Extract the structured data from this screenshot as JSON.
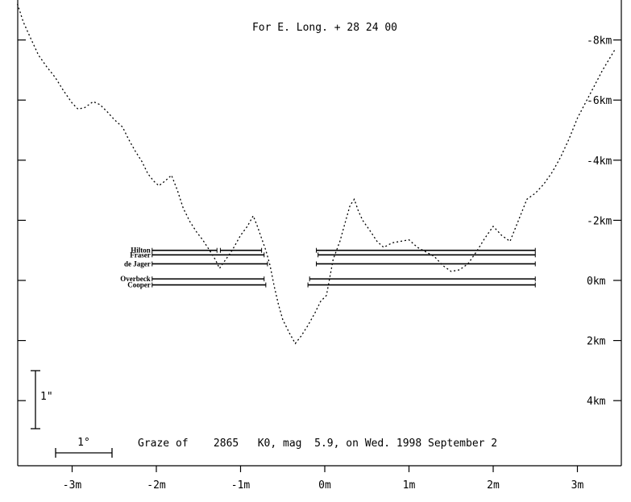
{
  "chart_data": {
    "type": "line",
    "title": "For E. Long. + 28 24 00",
    "caption": "Graze of    2865   K0, mag  5.9, on Wed. 1998 September 2",
    "xlabel": "",
    "ylabel": "",
    "xlim": [
      -3.85,
      3.55
    ],
    "ylim": [
      -9.0,
      6.0
    ],
    "x_ticks": [
      {
        "value": -3,
        "label": "-3m"
      },
      {
        "value": -2,
        "label": "-2m"
      },
      {
        "value": -1,
        "label": "-1m"
      },
      {
        "value": 0,
        "label": "0m"
      },
      {
        "value": 1,
        "label": "1m"
      },
      {
        "value": 2,
        "label": "2m"
      },
      {
        "value": 3,
        "label": "3m"
      }
    ],
    "y_ticks": [
      {
        "value": -8,
        "label": "-8km"
      },
      {
        "value": -6,
        "label": "-6km"
      },
      {
        "value": -4,
        "label": "-4km"
      },
      {
        "value": -2,
        "label": "-2km"
      },
      {
        "value": 0,
        "label": "0km"
      },
      {
        "value": 2,
        "label": "2km"
      },
      {
        "value": 4,
        "label": "4km"
      }
    ],
    "scale_bars": {
      "vertical_label": "1\"",
      "horizontal_label": "1°"
    },
    "limb_profile": {
      "name": "",
      "points": [
        [
          -3.65,
          -9.2
        ],
        [
          -3.58,
          -8.6
        ],
        [
          -3.5,
          -8.1
        ],
        [
          -3.4,
          -7.5
        ],
        [
          -3.3,
          -7.1
        ],
        [
          -3.2,
          -6.75
        ],
        [
          -3.1,
          -6.3
        ],
        [
          -3.0,
          -5.9
        ],
        [
          -2.93,
          -5.7
        ],
        [
          -2.85,
          -5.75
        ],
        [
          -2.75,
          -5.95
        ],
        [
          -2.67,
          -5.85
        ],
        [
          -2.58,
          -5.6
        ],
        [
          -2.5,
          -5.35
        ],
        [
          -2.4,
          -5.1
        ],
        [
          -2.33,
          -4.7
        ],
        [
          -2.25,
          -4.3
        ],
        [
          -2.17,
          -3.95
        ],
        [
          -2.1,
          -3.55
        ],
        [
          -2.03,
          -3.3
        ],
        [
          -1.97,
          -3.15
        ],
        [
          -1.9,
          -3.3
        ],
        [
          -1.82,
          -3.5
        ],
        [
          -1.75,
          -3.0
        ],
        [
          -1.68,
          -2.4
        ],
        [
          -1.6,
          -1.95
        ],
        [
          -1.52,
          -1.6
        ],
        [
          -1.45,
          -1.35
        ],
        [
          -1.38,
          -1.05
        ],
        [
          -1.3,
          -0.7
        ],
        [
          -1.25,
          -0.4
        ],
        [
          -1.2,
          -0.6
        ],
        [
          -1.1,
          -1.0
        ],
        [
          -1.0,
          -1.5
        ],
        [
          -0.92,
          -1.8
        ],
        [
          -0.85,
          -2.15
        ],
        [
          -0.8,
          -1.8
        ],
        [
          -0.75,
          -1.4
        ],
        [
          -0.7,
          -1.0
        ],
        [
          -0.65,
          -0.5
        ],
        [
          -0.6,
          0.2
        ],
        [
          -0.55,
          0.8
        ],
        [
          -0.5,
          1.3
        ],
        [
          -0.42,
          1.75
        ],
        [
          -0.35,
          2.1
        ],
        [
          -0.28,
          1.85
        ],
        [
          -0.2,
          1.5
        ],
        [
          -0.12,
          1.1
        ],
        [
          -0.05,
          0.7
        ],
        [
          0.02,
          0.5
        ],
        [
          0.1,
          -0.7
        ],
        [
          0.18,
          -1.3
        ],
        [
          0.25,
          -2.0
        ],
        [
          0.3,
          -2.5
        ],
        [
          0.35,
          -2.7
        ],
        [
          0.4,
          -2.3
        ],
        [
          0.45,
          -2.0
        ],
        [
          0.55,
          -1.6
        ],
        [
          0.62,
          -1.3
        ],
        [
          0.7,
          -1.1
        ],
        [
          0.8,
          -1.25
        ],
        [
          0.9,
          -1.3
        ],
        [
          1.0,
          -1.35
        ],
        [
          1.1,
          -1.1
        ],
        [
          1.2,
          -0.95
        ],
        [
          1.3,
          -0.8
        ],
        [
          1.4,
          -0.5
        ],
        [
          1.5,
          -0.3
        ],
        [
          1.6,
          -0.35
        ],
        [
          1.7,
          -0.55
        ],
        [
          1.8,
          -0.95
        ],
        [
          1.9,
          -1.4
        ],
        [
          2.0,
          -1.8
        ],
        [
          2.1,
          -1.5
        ],
        [
          2.2,
          -1.3
        ],
        [
          2.3,
          -2.0
        ],
        [
          2.4,
          -2.7
        ],
        [
          2.5,
          -2.9
        ],
        [
          2.6,
          -3.2
        ],
        [
          2.7,
          -3.6
        ],
        [
          2.8,
          -4.1
        ],
        [
          2.9,
          -4.7
        ],
        [
          3.0,
          -5.4
        ],
        [
          3.15,
          -6.2
        ],
        [
          3.3,
          -7.0
        ],
        [
          3.45,
          -7.7
        ]
      ]
    },
    "observer_chords": [
      {
        "name": "Hilton",
        "y": -1.0,
        "segments": [
          [
            -2.05,
            -1.28
          ],
          [
            -1.24,
            -0.75
          ],
          [
            -0.1,
            2.5
          ]
        ]
      },
      {
        "name": "Fraser",
        "y": -0.85,
        "segments": [
          [
            -2.05,
            -0.72
          ],
          [
            -0.08,
            2.5
          ]
        ]
      },
      {
        "name": "de Jager",
        "y": -0.55,
        "segments": [
          [
            -2.05,
            -0.68
          ],
          [
            -0.1,
            2.5
          ]
        ]
      },
      {
        "name": "Overbeck",
        "y": -0.05,
        "segments": [
          [
            -2.05,
            -0.72
          ],
          [
            -0.18,
            2.5
          ]
        ]
      },
      {
        "name": "Cooper",
        "y": 0.15,
        "segments": [
          [
            -2.05,
            -0.7
          ],
          [
            -0.2,
            2.5
          ]
        ]
      }
    ]
  }
}
